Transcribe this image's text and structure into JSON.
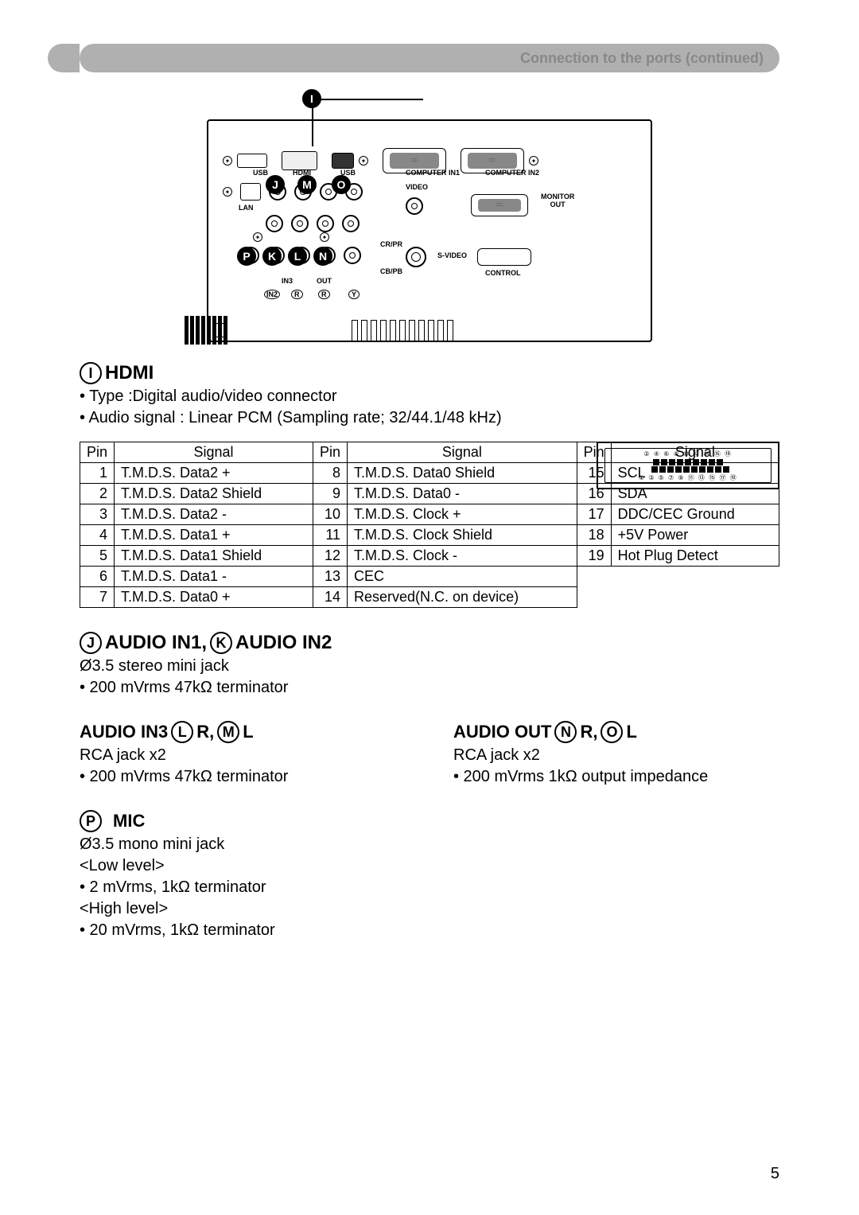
{
  "header": {
    "title": "Connection to the ports (continued)"
  },
  "diagram": {
    "letters": [
      "I",
      "J",
      "K",
      "L",
      "M",
      "N",
      "O",
      "P"
    ],
    "labels": {
      "lan": "LAN",
      "usb": "USB",
      "hdmi": "HDMI",
      "video": "VIDEO",
      "svideo": "S-VIDEO",
      "computer_in1": "COMPUTER IN1",
      "computer_in2": "COMPUTER IN2",
      "monitor_out": "MONITOR\nOUT",
      "control": "CONTROL",
      "in3": "IN3",
      "out": "OUT",
      "in2": "IN2",
      "r": "R",
      "l_audio": "L",
      "y": "Y",
      "cbpb": "CB/PB",
      "crpr": "CR/PR"
    }
  },
  "hdmi": {
    "heading": "HDMI",
    "letter": "I",
    "specs": [
      "• Type :Digital audio/video connector",
      "• Audio signal : Linear PCM (Sampling rate; 32/44.1/48 kHz)"
    ],
    "table_headers": [
      "Pin",
      "Signal",
      "Pin",
      "Signal",
      "Pin",
      "Signal"
    ],
    "rows": [
      [
        "1",
        "T.M.D.S. Data2 +",
        "8",
        "T.M.D.S. Data0 Shield",
        "15",
        "SCL"
      ],
      [
        "2",
        "T.M.D.S. Data2 Shield",
        "9",
        "T.M.D.S. Data0 -",
        "16",
        "SDA"
      ],
      [
        "3",
        "T.M.D.S. Data2 -",
        "10",
        "T.M.D.S. Clock +",
        "17",
        "DDC/CEC Ground"
      ],
      [
        "4",
        "T.M.D.S. Data1 +",
        "11",
        "T.M.D.S. Clock Shield",
        "18",
        "+5V Power"
      ],
      [
        "5",
        "T.M.D.S. Data1 Shield",
        "12",
        "T.M.D.S. Clock -",
        "19",
        "Hot Plug Detect"
      ],
      [
        "6",
        "T.M.D.S. Data1 -",
        "13",
        "CEC",
        "",
        ""
      ],
      [
        "7",
        "T.M.D.S. Data0 +",
        "14",
        "Reserved(N.C. on device)",
        "",
        ""
      ]
    ],
    "connector_top": "② ④ ⑥ ⑧ ⑩ ⑫ ⑭ ⑯ ⑱",
    "connector_bottom": "① ③ ⑤ ⑦ ⑨ ⑪ ⑬ ⑮ ⑰ ⑲"
  },
  "audio_in12": {
    "heading_pre_j": "AUDIO IN1,",
    "heading_post_k": "AUDIO IN2",
    "letter_j": "J",
    "letter_k": "K",
    "specs": [
      "Ø3.5 stereo mini jack",
      "• 200 mVrms 47kΩ terminator"
    ]
  },
  "audio_in3": {
    "heading": "AUDIO IN3",
    "letter_l": "L",
    "after_l": "R,",
    "letter_m": "M",
    "after_m": "L",
    "specs": [
      "RCA jack x2",
      "• 200 mVrms 47kΩ terminator"
    ]
  },
  "audio_out": {
    "heading": "AUDIO OUT",
    "letter_n": "N",
    "after_n": "R,",
    "letter_o": "O",
    "after_o": "L",
    "specs": [
      "RCA jack x2",
      "• 200 mVrms 1kΩ output impedance"
    ]
  },
  "mic": {
    "letter": "P",
    "heading": "MIC",
    "specs": [
      "Ø3.5 mono mini jack",
      "<Low level>",
      "• 2 mVrms, 1kΩ terminator",
      "<High level>",
      "• 20 mVrms, 1kΩ terminator"
    ]
  },
  "page_number": "5",
  "colors": {
    "header_band": "#b0b0b0",
    "header_text": "#888888"
  }
}
